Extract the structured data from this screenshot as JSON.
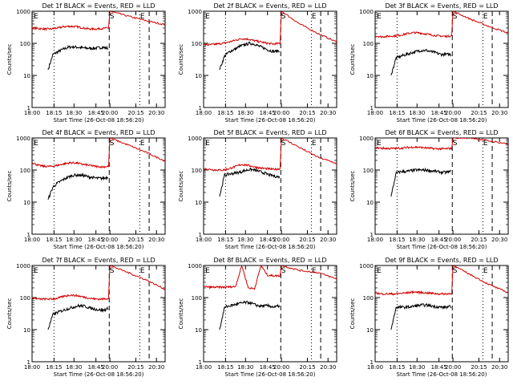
{
  "colors": {
    "events": "#000000",
    "lld": "#d40000",
    "axis": "#000000"
  },
  "common": {
    "ylabel": "Counts/sec",
    "xlabel": "Start Time (26-Oct-08 18:56:20)",
    "xticks": [
      "18:00",
      "18:15",
      "18:30",
      "18:45",
      "20:00",
      "20:15",
      "20:30"
    ],
    "yticks": [
      "1",
      "10",
      "100",
      "1000"
    ],
    "markers": [
      "S",
      "E"
    ]
  },
  "chart_data": [
    {
      "type": "line",
      "title": "Det 1f BLACK = Events, RED = LLD",
      "ylim": [
        1,
        1000
      ],
      "yscale": "log",
      "series": [
        {
          "name": "Events",
          "values": [
            15,
            45,
            55,
            65,
            75,
            78,
            75,
            72,
            70,
            70,
            72,
            75,
            70
          ]
        },
        {
          "name": "LLD",
          "values": [
            300,
            290,
            280,
            280,
            300,
            330,
            340,
            330,
            300,
            280,
            280,
            290,
            300,
            1000,
            700,
            500,
            380
          ]
        }
      ]
    },
    {
      "type": "line",
      "title": "Det 2f BLACK = Events, RED = LLD",
      "ylim": [
        1,
        1000
      ],
      "yscale": "log",
      "series": [
        {
          "name": "Events",
          "values": [
            15,
            40,
            55,
            65,
            80,
            90,
            100,
            95,
            80,
            70,
            60,
            55,
            60
          ]
        },
        {
          "name": "LLD",
          "values": [
            90,
            90,
            95,
            100,
            110,
            125,
            140,
            135,
            120,
            110,
            100,
            95,
            100,
            1000,
            400,
            200,
            110
          ]
        }
      ]
    },
    {
      "type": "line",
      "title": "Det 3f BLACK = Events, RED = LLD",
      "ylim": [
        1,
        1000
      ],
      "yscale": "log",
      "series": [
        {
          "name": "Events",
          "values": [
            10,
            35,
            40,
            45,
            50,
            55,
            60,
            60,
            55,
            50,
            45,
            45,
            45
          ]
        },
        {
          "name": "LLD",
          "values": [
            170,
            160,
            165,
            170,
            180,
            200,
            215,
            210,
            195,
            180,
            170,
            165,
            170,
            1000,
            550,
            330,
            210
          ]
        }
      ]
    },
    {
      "type": "line",
      "title": "Det 4f BLACK = Events, RED = LLD",
      "ylim": [
        1,
        1000
      ],
      "yscale": "log",
      "series": [
        {
          "name": "Events",
          "values": [
            12,
            30,
            40,
            50,
            60,
            68,
            70,
            68,
            62,
            58,
            55,
            55,
            60
          ]
        },
        {
          "name": "LLD",
          "values": [
            170,
            140,
            130,
            130,
            140,
            155,
            170,
            165,
            150,
            140,
            130,
            125,
            130,
            1000,
            600,
            350,
            190
          ]
        }
      ]
    },
    {
      "type": "line",
      "title": "Det 5f BLACK = Events, RED = LLD",
      "ylim": [
        1,
        1000
      ],
      "yscale": "log",
      "series": [
        {
          "name": "Events",
          "values": [
            15,
            70,
            75,
            80,
            85,
            95,
            105,
            100,
            90,
            80,
            70,
            65,
            60
          ]
        },
        {
          "name": "LLD",
          "values": [
            110,
            105,
            100,
            100,
            110,
            130,
            150,
            140,
            125,
            115,
            110,
            105,
            110,
            1000,
            500,
            250,
            160
          ]
        }
      ]
    },
    {
      "type": "line",
      "title": "Det 6f BLACK = Events, RED = LLD",
      "ylim": [
        1,
        1000
      ],
      "yscale": "log",
      "series": [
        {
          "name": "Events",
          "values": [
            15,
            80,
            90,
            90,
            95,
            100,
            100,
            100,
            95,
            90,
            85,
            85,
            90
          ]
        },
        {
          "name": "LLD",
          "values": [
            500,
            480,
            470,
            470,
            480,
            500,
            520,
            510,
            490,
            470,
            460,
            460,
            470,
            1000,
            1000,
            800,
            650
          ]
        }
      ]
    },
    {
      "type": "line",
      "title": "Det 7f BLACK = Events, RED = LLD",
      "ylim": [
        1,
        1000
      ],
      "yscale": "log",
      "series": [
        {
          "name": "Events",
          "values": [
            10,
            30,
            35,
            40,
            45,
            50,
            55,
            55,
            50,
            45,
            42,
            40,
            45
          ]
        },
        {
          "name": "LLD",
          "values": [
            100,
            90,
            90,
            90,
            95,
            110,
            120,
            115,
            105,
            95,
            90,
            90,
            95,
            1000,
            600,
            350,
            180
          ]
        }
      ]
    },
    {
      "type": "line",
      "title": "Det 8f BLACK = Events, RED = LLD",
      "ylim": [
        1,
        1000
      ],
      "yscale": "log",
      "series": [
        {
          "name": "Events",
          "values": [
            10,
            50,
            55,
            60,
            65,
            70,
            70,
            60,
            55,
            55,
            55,
            50,
            55
          ]
        },
        {
          "name": "LLD",
          "values": [
            220,
            210,
            210,
            210,
            215,
            220,
            1000,
            200,
            190,
            1000,
            500,
            480,
            480,
            1000,
            700,
            600,
            380
          ]
        }
      ]
    },
    {
      "type": "line",
      "title": "Det 9f BLACK = Events, RED = LLD",
      "ylim": [
        1,
        1000
      ],
      "yscale": "log",
      "series": [
        {
          "name": "Events",
          "values": [
            10,
            50,
            50,
            50,
            52,
            55,
            58,
            58,
            55,
            52,
            50,
            50,
            52
          ]
        },
        {
          "name": "LLD",
          "values": [
            140,
            130,
            130,
            130,
            135,
            140,
            150,
            145,
            140,
            135,
            130,
            130,
            135,
            1000,
            500,
            250,
            140
          ]
        }
      ]
    }
  ]
}
